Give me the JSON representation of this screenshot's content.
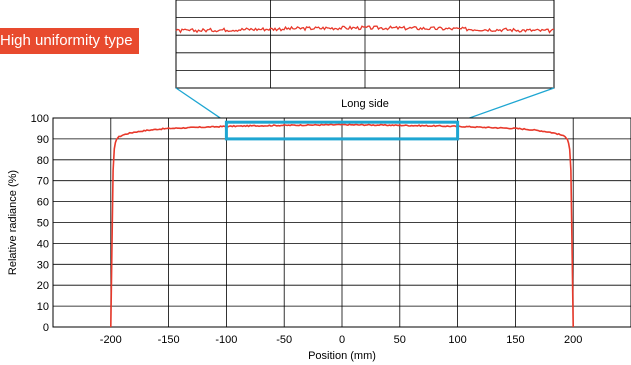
{
  "badge": {
    "label": "High uniformity type",
    "color": "#e84a2e"
  },
  "colors": {
    "series": "#e8392b",
    "highlight": "#1ea6d2",
    "grid": "#000000"
  },
  "chart_data": [
    {
      "type": "line",
      "title": "",
      "xlabel": "Position (mm)",
      "ylabel": "Relative radiance (%)",
      "xlim": [
        -250,
        250
      ],
      "ylim": [
        0,
        100
      ],
      "x_ticks": [
        -200,
        -150,
        -100,
        -50,
        0,
        50,
        100,
        150,
        200
      ],
      "y_ticks": [
        0,
        10,
        20,
        30,
        40,
        50,
        60,
        70,
        80,
        90,
        100
      ],
      "grid": true,
      "series": [
        {
          "x": [
            -200,
            -199,
            -198,
            -197,
            -196,
            -195,
            -193,
            -190,
            -185,
            -180,
            -170,
            -160,
            -150,
            -100,
            -50,
            0,
            50,
            100,
            150,
            160,
            170,
            180,
            185,
            190,
            193,
            195,
            196,
            197,
            198,
            199,
            200
          ],
          "y": [
            0,
            40,
            75,
            85,
            88,
            90,
            91,
            91.8,
            92.6,
            93.2,
            94,
            94.6,
            95,
            96,
            96.5,
            96.8,
            96.5,
            96,
            95,
            94.6,
            94,
            93.2,
            92.6,
            91.8,
            91,
            90,
            88,
            85,
            75,
            40,
            0
          ]
        }
      ],
      "highlight_region": {
        "x": [
          -100,
          100
        ],
        "y": [
          90,
          98
        ]
      }
    },
    {
      "type": "line",
      "title": "Long side",
      "xlim": [
        -100,
        100
      ],
      "grid": true,
      "series": [
        {
          "x": [
            -100,
            -75,
            -50,
            -25,
            0,
            25,
            50,
            75,
            100
          ],
          "y": [
            96,
            96.3,
            96.5,
            96.7,
            96.8,
            96.7,
            96.5,
            96.3,
            96
          ]
        }
      ]
    }
  ]
}
